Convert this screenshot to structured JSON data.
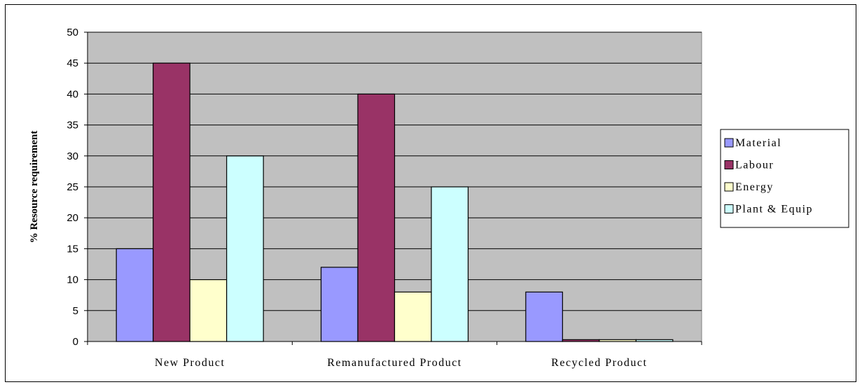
{
  "chart_data": {
    "type": "bar",
    "title": "",
    "xlabel": "",
    "ylabel": "% Resource requirement",
    "categories": [
      "New Product",
      "Remanufactured Product",
      "Recycled Product"
    ],
    "series": [
      {
        "name": "Material",
        "color": "#9999ff",
        "values": [
          15,
          12,
          8
        ]
      },
      {
        "name": "Labour",
        "color": "#993366",
        "values": [
          45,
          40,
          0.3
        ]
      },
      {
        "name": "Energy",
        "color": "#ffffcc",
        "values": [
          10,
          8,
          0.3
        ]
      },
      {
        "name": "Plant & Equip",
        "color": "#ccffff",
        "values": [
          30,
          25,
          0.3
        ]
      }
    ],
    "ylim": [
      0,
      50
    ],
    "yticks": [
      "0",
      "5",
      "10",
      "15",
      "20",
      "25",
      "30",
      "35",
      "40",
      "45",
      "50"
    ],
    "plot_background": "#c0c0c0",
    "grid": true,
    "legend_position": "right"
  }
}
